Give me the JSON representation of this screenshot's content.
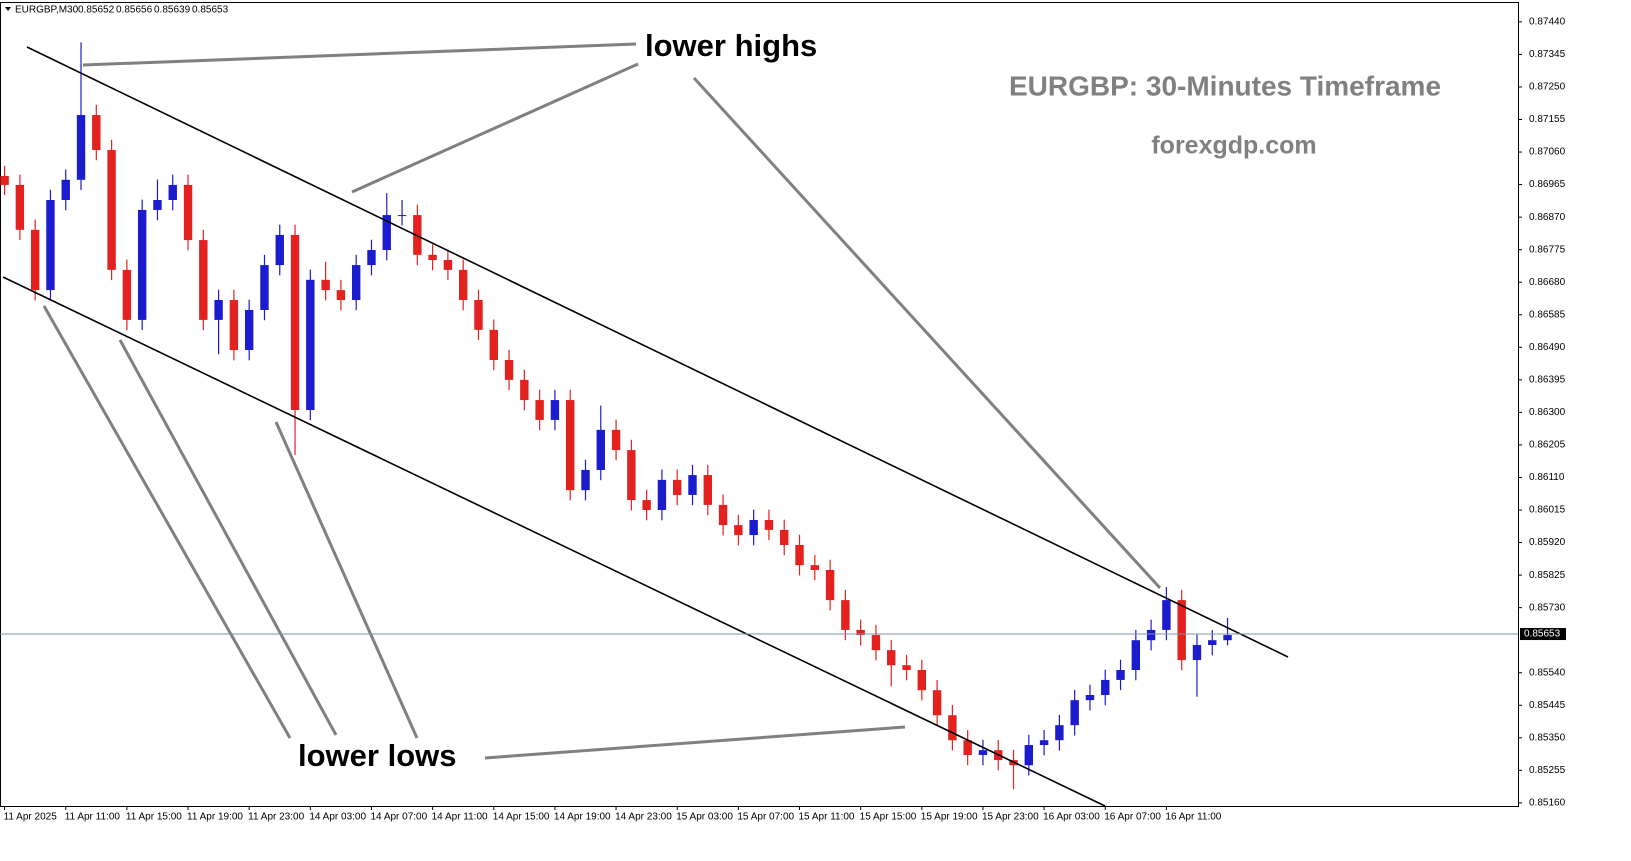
{
  "chart_data": {
    "type": "candlestick",
    "symbol": "EURGBP,M30",
    "ohlc_header": [
      0.85652,
      0.85656,
      0.85639,
      0.85653
    ],
    "title": "EURGBP: 30-Minutes Timeframe",
    "subtitle": "forexgdp.com",
    "annotations": [
      "lower highs",
      "lower lows"
    ],
    "up_color": "#1c1ccf",
    "down_color": "#e3211f",
    "grid": false,
    "current_price": 0.85653,
    "xlim": [
      -0.3,
      99
    ],
    "xticks": [
      {
        "value": 0,
        "label": "11 Apr 2025"
      },
      {
        "value": 4,
        "label": "11 Apr 11:00"
      },
      {
        "value": 8,
        "label": "11 Apr 15:00"
      },
      {
        "value": 12,
        "label": "11 Apr 19:00"
      },
      {
        "value": 16,
        "label": "11 Apr 23:00"
      },
      {
        "value": 20,
        "label": "14 Apr 03:00"
      },
      {
        "value": 24,
        "label": "14 Apr 07:00"
      },
      {
        "value": 28,
        "label": "14 Apr 11:00"
      },
      {
        "value": 32,
        "label": "14 Apr 15:00"
      },
      {
        "value": 36,
        "label": "14 Apr 19:00"
      },
      {
        "value": 40,
        "label": "14 Apr 23:00"
      },
      {
        "value": 44,
        "label": "15 Apr 03:00"
      },
      {
        "value": 48,
        "label": "15 Apr 07:00"
      },
      {
        "value": 52,
        "label": "15 Apr 11:00"
      },
      {
        "value": 56,
        "label": "15 Apr 15:00"
      },
      {
        "value": 60,
        "label": "15 Apr 19:00"
      },
      {
        "value": 64,
        "label": "15 Apr 23:00"
      },
      {
        "value": 68,
        "label": "16 Apr 03:00"
      },
      {
        "value": 72,
        "label": "16 Apr 07:00"
      },
      {
        "value": 76,
        "label": "16 Apr 11:00"
      }
    ],
    "ylim": [
      0.85151,
      0.87498
    ],
    "yticks": [
      {
        "value": 0.8744,
        "label": "0.87440"
      },
      0.87345,
      {
        "value": 0.8725,
        "label": "0.87250"
      },
      0.87155,
      {
        "value": 0.8706,
        "label": "0.87060"
      },
      0.86965,
      {
        "value": 0.8687,
        "label": "0.86870"
      },
      0.86775,
      {
        "value": 0.8668,
        "label": "0.86680"
      },
      0.86585,
      {
        "value": 0.8649,
        "label": "0.86490"
      },
      0.86395,
      {
        "value": 0.863,
        "label": "0.86300"
      },
      0.86205,
      {
        "value": 0.8611,
        "label": "0.86110"
      },
      0.86015,
      {
        "value": 0.8592,
        "label": "0.85920"
      },
      0.85825,
      {
        "value": 0.8573,
        "label": "0.85730"
      },
      {
        "value": 0.8554,
        "label": "0.85540"
      },
      0.85445,
      {
        "value": 0.8535,
        "label": "0.85350"
      },
      0.85255,
      {
        "value": 0.8516,
        "label": "0.85160"
      }
    ],
    "open": [
      0.8699,
      0.86964,
      0.86833,
      0.86657,
      0.8692,
      0.86979,
      0.87168,
      0.87066,
      0.86716,
      0.8657,
      0.86891,
      0.8692,
      0.86964,
      0.86803,
      0.8657,
      0.86628,
      0.86482,
      0.86599,
      0.8673,
      0.86818,
      0.86307,
      0.86687,
      0.86657,
      0.86628,
      0.8673,
      0.86774,
      0.86876,
      0.86876,
      0.8676,
      0.86745,
      0.86716,
      0.86628,
      0.86541,
      0.86453,
      0.86395,
      0.86336,
      0.86278,
      0.86336,
      0.86073,
      0.86132,
      0.86249,
      0.8619,
      0.86044,
      0.86015,
      0.86103,
      0.86059,
      0.86117,
      0.8603,
      0.85971,
      0.85942,
      0.85986,
      0.85957,
      0.85913,
      0.85854,
      0.8584,
      0.85752,
      0.85665,
      0.8565,
      0.85606,
      0.85562,
      0.85548,
      0.85489,
      0.85416,
      0.85343,
      0.853,
      0.85314,
      0.85285,
      0.8527,
      0.85329,
      0.85343,
      0.85387,
      0.8546,
      0.85475,
      0.85519,
      0.85548,
      0.85635,
      0.85665,
      0.85752,
      0.85577,
      0.85621,
      0.85635
    ],
    "high": [
      0.8702,
      0.86994,
      0.86863,
      0.8695,
      0.87009,
      0.8738,
      0.87198,
      0.87096,
      0.86746,
      0.86921,
      0.8698,
      0.86994,
      0.86994,
      0.86833,
      0.86658,
      0.86658,
      0.86629,
      0.8676,
      0.86848,
      0.86848,
      0.86717,
      0.8674,
      0.86687,
      0.8676,
      0.86804,
      0.8694,
      0.8692,
      0.86906,
      0.8679,
      0.86775,
      0.86746,
      0.86658,
      0.86571,
      0.86483,
      0.86425,
      0.86366,
      0.86366,
      0.86366,
      0.86162,
      0.8632,
      0.86279,
      0.8622,
      0.86074,
      0.86133,
      0.86133,
      0.86147,
      0.86147,
      0.8606,
      0.86001,
      0.86016,
      0.86016,
      0.85987,
      0.85943,
      0.85884,
      0.8587,
      0.85782,
      0.85695,
      0.8568,
      0.85636,
      0.85592,
      0.85578,
      0.85519,
      0.85446,
      0.85373,
      0.85344,
      0.85344,
      0.85315,
      0.85359,
      0.85373,
      0.85417,
      0.8549,
      0.85505,
      0.85549,
      0.85578,
      0.85665,
      0.85695,
      0.8579,
      0.85782,
      0.85651,
      0.85665,
      0.857
    ],
    "low": [
      0.86934,
      0.86803,
      0.86627,
      0.86627,
      0.8689,
      0.86949,
      0.87036,
      0.86686,
      0.8654,
      0.8654,
      0.86861,
      0.8689,
      0.86773,
      0.8654,
      0.8647,
      0.86452,
      0.86452,
      0.86569,
      0.867,
      0.86176,
      0.86277,
      0.86627,
      0.86598,
      0.86598,
      0.867,
      0.86744,
      0.86846,
      0.8673,
      0.86715,
      0.86686,
      0.86598,
      0.86511,
      0.86423,
      0.86365,
      0.86306,
      0.86248,
      0.86248,
      0.86043,
      0.86043,
      0.86102,
      0.8616,
      0.86014,
      0.85985,
      0.85985,
      0.86029,
      0.86029,
      0.86,
      0.85941,
      0.85912,
      0.85912,
      0.85927,
      0.85883,
      0.85824,
      0.8581,
      0.85722,
      0.85635,
      0.8562,
      0.85576,
      0.855,
      0.85518,
      0.85459,
      0.85386,
      0.85313,
      0.8527,
      0.8527,
      0.85255,
      0.852,
      0.8524,
      0.85299,
      0.85313,
      0.85357,
      0.8543,
      0.85445,
      0.85489,
      0.85518,
      0.85605,
      0.85635,
      0.85547,
      0.8547,
      0.85591,
      0.8562
    ],
    "close": [
      0.86964,
      0.86833,
      0.86657,
      0.8692,
      0.86979,
      0.87168,
      0.87066,
      0.86716,
      0.8657,
      0.86891,
      0.8692,
      0.86964,
      0.86803,
      0.8657,
      0.86628,
      0.86482,
      0.86599,
      0.8673,
      0.86818,
      0.86307,
      0.86687,
      0.86657,
      0.86628,
      0.8673,
      0.86774,
      0.86876,
      0.86876,
      0.8676,
      0.86745,
      0.86716,
      0.86628,
      0.86541,
      0.86453,
      0.86395,
      0.86336,
      0.86278,
      0.86336,
      0.86073,
      0.86132,
      0.86249,
      0.8619,
      0.86044,
      0.86015,
      0.86103,
      0.86059,
      0.86117,
      0.8603,
      0.85971,
      0.85942,
      0.85986,
      0.85957,
      0.85913,
      0.85854,
      0.8584,
      0.85752,
      0.85665,
      0.8565,
      0.85606,
      0.85562,
      0.85548,
      0.85489,
      0.85416,
      0.85343,
      0.853,
      0.85314,
      0.85285,
      0.8527,
      0.85329,
      0.85343,
      0.85387,
      0.8546,
      0.85475,
      0.85519,
      0.85548,
      0.85635,
      0.85665,
      0.85752,
      0.85577,
      0.85621,
      0.85635,
      0.8565
    ]
  }
}
